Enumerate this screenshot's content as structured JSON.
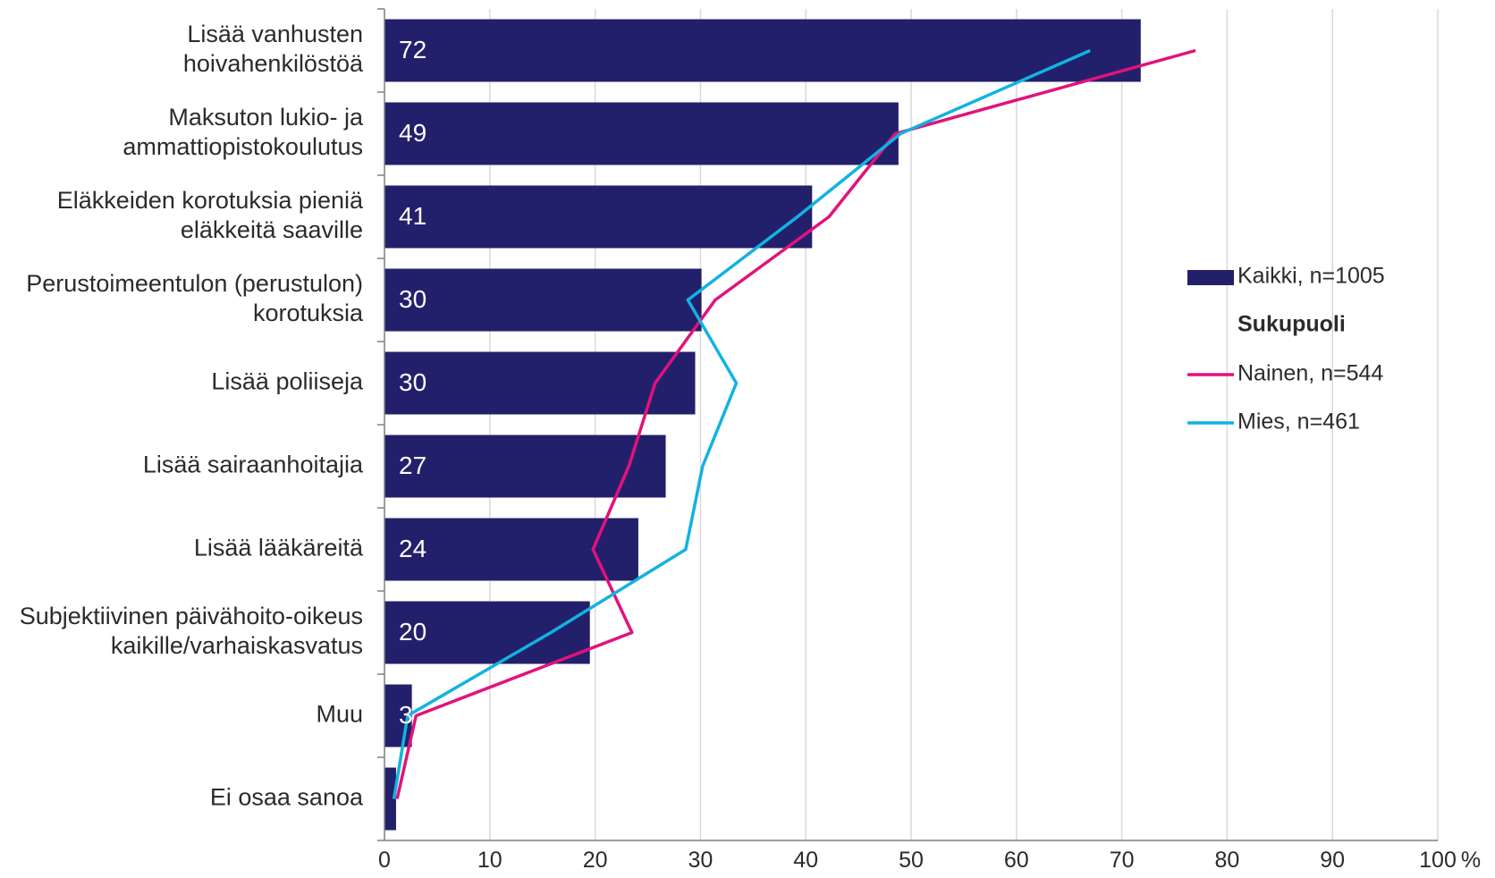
{
  "chart_data": {
    "type": "bar",
    "orientation": "horizontal",
    "categories": [
      [
        "Lisää vanhusten",
        "hoivahenkilöstöä"
      ],
      [
        "Maksuton lukio- ja",
        "ammattiopistokoulutus"
      ],
      [
        "Eläkkeiden korotuksia pieniä",
        "eläkkeitä saaville"
      ],
      [
        "Perustoimeentulon (perustulon)",
        "korotuksia"
      ],
      [
        "Lisää poliiseja"
      ],
      [
        "Lisää sairaanhoitajia"
      ],
      [
        "Lisää lääkäreitä"
      ],
      [
        "Subjektiivinen päivähoito-oikeus",
        "kaikille/varhaiskasvatus"
      ],
      [
        "Muu"
      ],
      [
        "Ei osaa sanoa"
      ]
    ],
    "series": [
      {
        "name": "Kaikki, n=1005",
        "kind": "bar",
        "color": "#23206b",
        "values": [
          71.8,
          48.8,
          40.6,
          30.1,
          29.5,
          26.7,
          24.1,
          19.5,
          2.6,
          1.1
        ]
      },
      {
        "name": "Nainen, n=544",
        "kind": "line",
        "color": "#e2127b",
        "values": [
          77,
          48.5,
          42.2,
          31.4,
          25.7,
          23.2,
          19.8,
          23.5,
          3.0,
          1.2
        ]
      },
      {
        "name": "Mies, n=461",
        "kind": "line",
        "color": "#12b2e2",
        "values": [
          67,
          49,
          39.2,
          28.8,
          33.4,
          30.2,
          28.6,
          15.8,
          2.2,
          0.9
        ]
      }
    ],
    "data_labels": [
      "72",
      "49",
      "41",
      "30",
      "30",
      "27",
      "24",
      "20",
      "3",
      ""
    ],
    "xlim": [
      0,
      100
    ],
    "xticks": [
      "0",
      "10",
      "20",
      "30",
      "40",
      "50",
      "60",
      "70",
      "80",
      "90",
      "100"
    ],
    "xunit": "%",
    "grid": true,
    "legend": {
      "placement": "right",
      "heading": "Sukupuoli"
    }
  }
}
